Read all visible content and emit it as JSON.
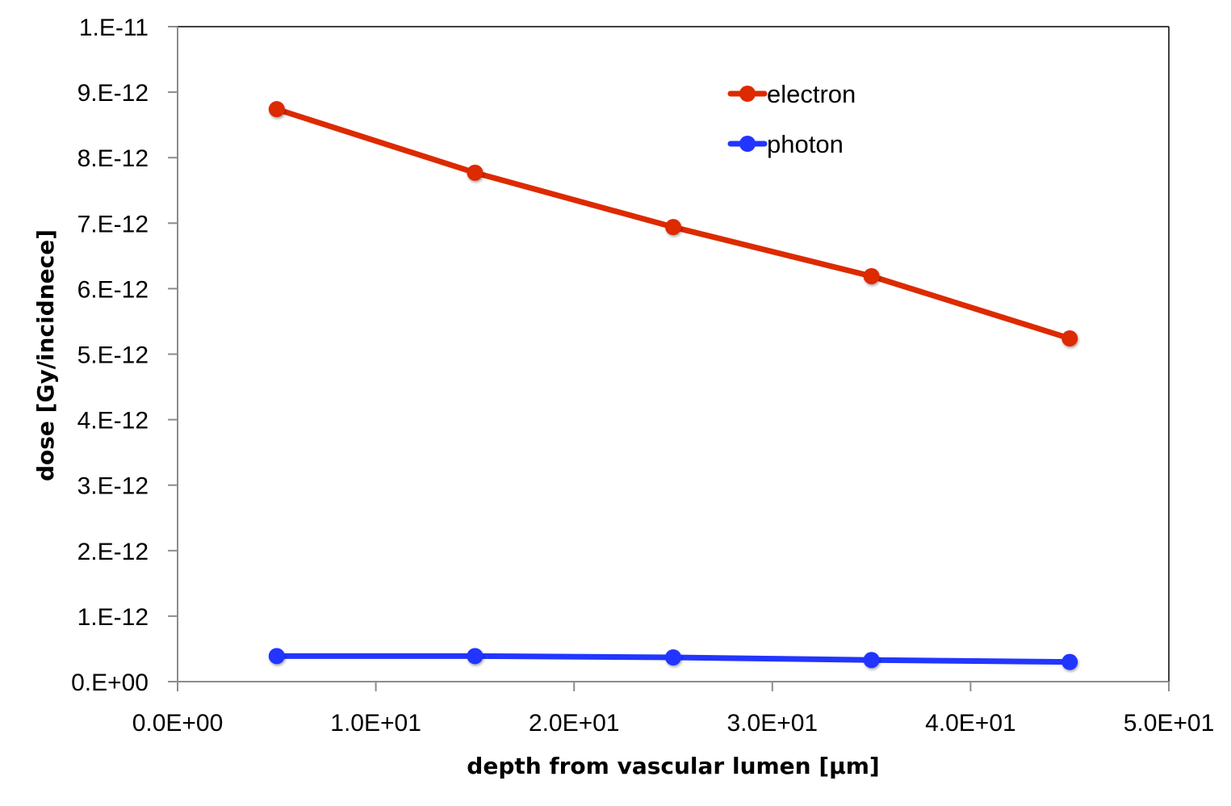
{
  "chart_data": {
    "type": "line",
    "title": "",
    "xlabel": "depth from vascular lumen [µm]",
    "ylabel": "dose [Gy/incidnece]",
    "xlim": [
      0,
      50
    ],
    "ylim": [
      0,
      1e-11
    ],
    "x_ticks": [
      0,
      10,
      20,
      30,
      40,
      50
    ],
    "x_tick_labels": [
      "0.0E+00",
      "1.0E+01",
      "2.0E+01",
      "3.0E+01",
      "4.0E+01",
      "5.0E+01"
    ],
    "y_ticks": [
      0,
      1e-12,
      2e-12,
      3e-12,
      4e-12,
      5e-12,
      6e-12,
      7e-12,
      8e-12,
      9e-12,
      1e-11
    ],
    "y_tick_labels": [
      "0.E+00",
      "1.E-12",
      "2.E-12",
      "3.E-12",
      "4.E-12",
      "5.E-12",
      "6.E-12",
      "7.E-12",
      "8.E-12",
      "9.E-12",
      "1.E-11"
    ],
    "grid": false,
    "legend_position": "top-right",
    "x": [
      5,
      15,
      25,
      35,
      45
    ],
    "series": [
      {
        "name": "electron",
        "color": "#dd2a00",
        "values": [
          8.74e-12,
          7.77e-12,
          6.94e-12,
          6.19e-12,
          5.24e-12
        ]
      },
      {
        "name": "photon",
        "color": "#2236ff",
        "values": [
          3.9e-13,
          3.9e-13,
          3.7e-13,
          3.3e-13,
          3e-13
        ]
      }
    ]
  }
}
